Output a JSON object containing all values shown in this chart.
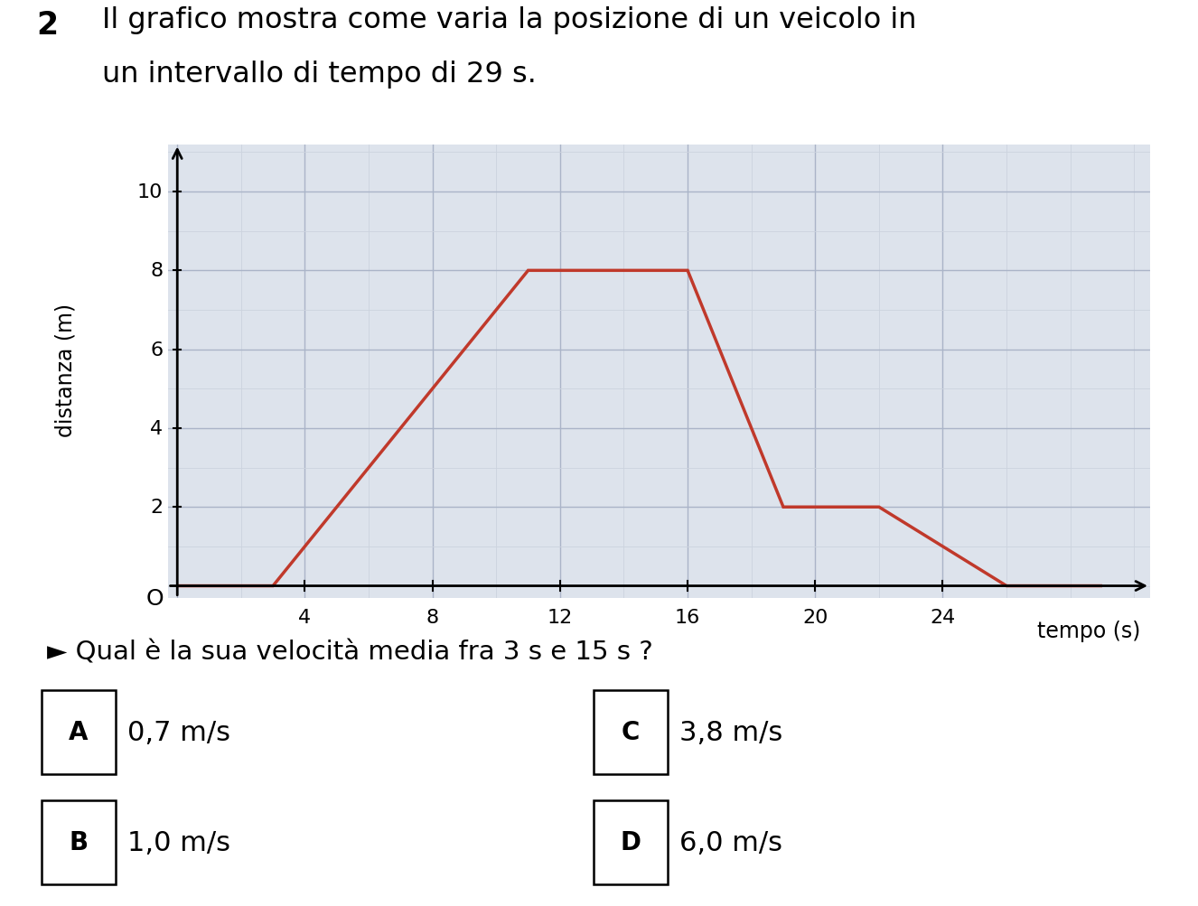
{
  "title_number": "2",
  "title_line1": "Il grafico mostra come varia la posizione di un veicolo in",
  "title_line2": "un intervallo di tempo di 29 s.",
  "xlabel": "tempo (s)",
  "ylabel": "distanza (m)",
  "line_x": [
    0,
    3,
    11,
    16,
    19,
    22,
    26,
    29
  ],
  "line_y": [
    0,
    0,
    8,
    8,
    2,
    2,
    0,
    0
  ],
  "line_color": "#c0392b",
  "line_width": 2.5,
  "xlim": [
    -0.3,
    30.5
  ],
  "ylim": [
    -0.3,
    11.2
  ],
  "xticks": [
    4,
    8,
    12,
    16,
    20,
    24
  ],
  "yticks": [
    2,
    4,
    6,
    8,
    10
  ],
  "x_origin_label": "O",
  "grid_color_major": "#aab4c8",
  "grid_color_minor": "#ccd3de",
  "bg_color": "#dde3ec",
  "question_text": "► Qual è la sua velocità media fra 3 s e 15 s ?",
  "options": [
    {
      "label": "A",
      "text": "0,7 m/s",
      "col": 0
    },
    {
      "label": "B",
      "text": "1,0 m/s",
      "col": 0
    },
    {
      "label": "C",
      "text": "3,8 m/s",
      "col": 1
    },
    {
      "label": "D",
      "text": "6,0 m/s",
      "col": 1
    }
  ],
  "font_family": "DejaVu Sans",
  "title_fontsize": 23,
  "axis_label_fontsize": 17,
  "tick_fontsize": 16,
  "question_fontsize": 21,
  "option_fontsize": 22
}
